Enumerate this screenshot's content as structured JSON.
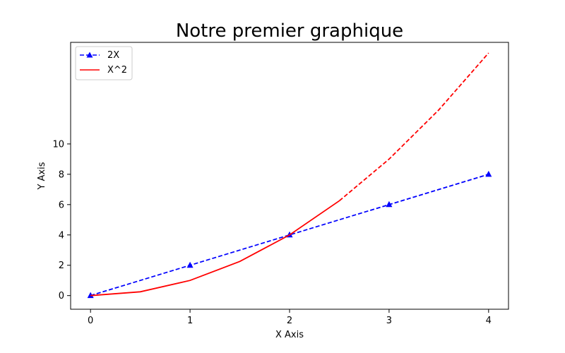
{
  "chart_data": {
    "type": "line",
    "title": "Notre premier graphique",
    "xlabel": "X Axis",
    "ylabel": "Y Axis",
    "xlim": [
      -0.2,
      4.2
    ],
    "ylim": [
      -0.9,
      16.7
    ],
    "x_ticks": [
      0,
      1,
      2,
      3,
      4
    ],
    "y_ticks": [
      0,
      2,
      4,
      6,
      8,
      10
    ],
    "grid": false,
    "legend_placement": "top-left",
    "series": [
      {
        "name": "2X",
        "color": "#0000ff",
        "line_style": "dashed",
        "marker": "triangle-up",
        "x": [
          0,
          1,
          2,
          3,
          4
        ],
        "y": [
          0,
          2,
          4,
          6,
          8
        ]
      },
      {
        "name": "X^2",
        "color": "#ff0000",
        "line_style": "solid-then-dashed",
        "dash_from_x": 2.5,
        "x": [
          0,
          0.5,
          1,
          1.5,
          2,
          2.5,
          3,
          3.5,
          4
        ],
        "y": [
          0,
          0.25,
          1,
          2.25,
          4,
          6.25,
          9,
          12.25,
          16
        ]
      }
    ]
  }
}
